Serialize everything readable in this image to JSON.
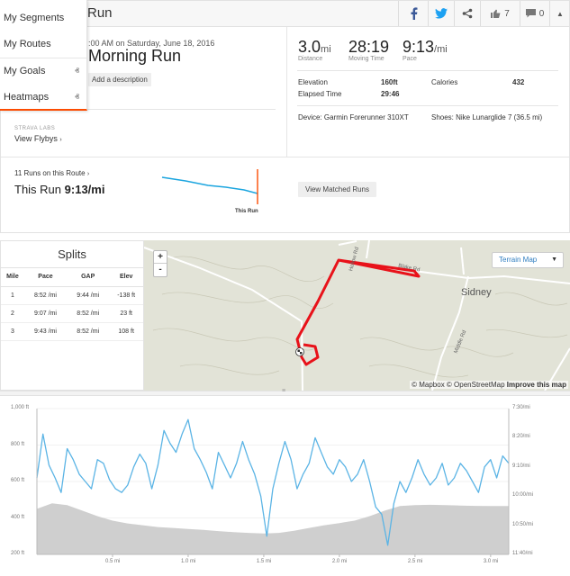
{
  "header": {
    "title": "Run",
    "like_count": "7",
    "comment_count": "0",
    "colors": {
      "facebook": "#3b5998",
      "twitter": "#1da1f2"
    }
  },
  "menu": {
    "items": [
      {
        "label": "My Segments"
      },
      {
        "label": "My Routes"
      },
      {
        "label": "My Goals"
      },
      {
        "label": "Heatmaps"
      }
    ],
    "accent": "#fc4c02"
  },
  "activity": {
    "datetime": ":00 AM on Saturday, June 18, 2016",
    "name": "Morning Run",
    "add_description": "Add a description",
    "labs_label": "STRAVA LABS",
    "flybys": "View Flybys"
  },
  "stats": {
    "distance": {
      "value": "3.0",
      "unit": "mi",
      "label": "Distance"
    },
    "moving_time": {
      "value": "28:19",
      "label": "Moving Time"
    },
    "pace": {
      "value": "9:13",
      "unit": "/mi",
      "label": "Pace"
    },
    "elevation_label": "Elevation",
    "elevation_value": "160ft",
    "calories_label": "Calories",
    "calories_value": "432",
    "elapsed_label": "Elapsed Time",
    "elapsed_value": "29:46",
    "device": "Device: Garmin Forerunner 310XT",
    "shoes": "Shoes: Nike Lunarglide 7 (36.5 mi)"
  },
  "route": {
    "runs_on_route": "11 Runs on this Route",
    "this_run_label": "This Run",
    "this_run_pace": "9:13/mi",
    "marker_label": "This Run",
    "view_matched": "View Matched Runs"
  },
  "splits": {
    "title": "Splits",
    "headers": [
      "Mile",
      "Pace",
      "GAP",
      "Elev"
    ],
    "rows": [
      [
        "1",
        "8:52 /mi",
        "9:44 /mi",
        "-138 ft"
      ],
      [
        "2",
        "9:07 /mi",
        "8:52 /mi",
        "23 ft"
      ],
      [
        "3",
        "9:43 /mi",
        "8:52 /mi",
        "108 ft"
      ]
    ]
  },
  "map": {
    "zoom_in": "+",
    "zoom_out": "-",
    "terrain_label": "Terrain Map",
    "town": "Sidney",
    "road_labels": [
      "Hollow Rd",
      "Blake Rd",
      "Middle Rd"
    ],
    "attribution_mapbox": "© Mapbox",
    "attribution_osm": "© OpenStreetMap",
    "attribution_improve": "Improve this map",
    "route_color": "#e8121a"
  },
  "chart_data": {
    "type": "area",
    "x_label": "",
    "x_ticks": [
      "0.5 mi",
      "1.0 mi",
      "1.5 mi",
      "2.0 mi",
      "2.5 mi",
      "3.0 mi"
    ],
    "x_tick_values": [
      0.5,
      1.0,
      1.5,
      2.0,
      2.5,
      3.0
    ],
    "xlim": [
      0,
      3.12
    ],
    "y_left_ticks": [
      "1,000 ft",
      "800 ft",
      "600 ft",
      "400 ft",
      "200 ft"
    ],
    "ylim_left": [
      200,
      1000
    ],
    "y_right_ticks": [
      "7:30/mi",
      "8:20/mi",
      "9:10/mi",
      "10:00/mi",
      "10:50/mi",
      "11:40/mi"
    ],
    "series": [
      {
        "kind": "elevation",
        "color": "#cfcfcf",
        "x": [
          0,
          0.1,
          0.2,
          0.3,
          0.4,
          0.5,
          0.6,
          0.7,
          0.8,
          0.9,
          1.0,
          1.1,
          1.2,
          1.3,
          1.4,
          1.5,
          1.6,
          1.7,
          1.8,
          1.9,
          2.0,
          2.1,
          2.2,
          2.3,
          2.4,
          2.5,
          2.6,
          2.7,
          2.8,
          2.9,
          3.0,
          3.12
        ],
        "values": [
          450,
          480,
          470,
          440,
          410,
          385,
          370,
          360,
          350,
          345,
          340,
          335,
          328,
          322,
          318,
          315,
          318,
          330,
          345,
          360,
          372,
          385,
          410,
          440,
          465,
          470,
          472,
          470,
          468,
          466,
          465,
          465
        ]
      },
      {
        "kind": "pace",
        "color": "#5bb4e5",
        "x": [
          0,
          0.04,
          0.08,
          0.12,
          0.16,
          0.2,
          0.24,
          0.28,
          0.32,
          0.36,
          0.4,
          0.44,
          0.48,
          0.52,
          0.56,
          0.6,
          0.64,
          0.68,
          0.72,
          0.76,
          0.8,
          0.84,
          0.88,
          0.92,
          0.96,
          1.0,
          1.04,
          1.08,
          1.12,
          1.16,
          1.2,
          1.24,
          1.28,
          1.32,
          1.36,
          1.4,
          1.44,
          1.48,
          1.52,
          1.56,
          1.6,
          1.64,
          1.68,
          1.72,
          1.76,
          1.8,
          1.84,
          1.88,
          1.92,
          1.96,
          2.0,
          2.04,
          2.08,
          2.12,
          2.16,
          2.2,
          2.24,
          2.28,
          2.32,
          2.36,
          2.4,
          2.44,
          2.48,
          2.52,
          2.56,
          2.6,
          2.64,
          2.68,
          2.72,
          2.76,
          2.8,
          2.84,
          2.88,
          2.92,
          2.96,
          3.0,
          3.04,
          3.08,
          3.12
        ],
        "values": [
          620,
          860,
          690,
          620,
          540,
          780,
          720,
          640,
          600,
          560,
          720,
          700,
          610,
          560,
          540,
          580,
          680,
          750,
          700,
          560,
          690,
          880,
          810,
          760,
          860,
          940,
          780,
          720,
          650,
          560,
          760,
          690,
          620,
          700,
          820,
          720,
          640,
          520,
          300,
          560,
          700,
          820,
          720,
          560,
          640,
          700,
          840,
          760,
          680,
          640,
          720,
          680,
          600,
          640,
          720,
          600,
          460,
          420,
          250,
          480,
          600,
          540,
          620,
          720,
          640,
          580,
          620,
          700,
          580,
          620,
          700,
          660,
          600,
          540,
          680,
          720,
          620,
          740,
          700
        ]
      }
    ]
  }
}
